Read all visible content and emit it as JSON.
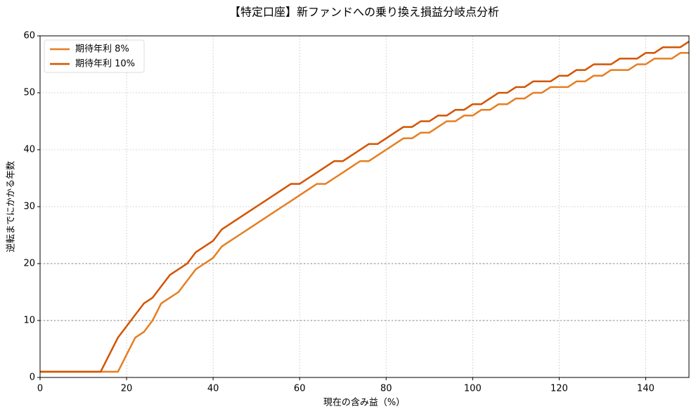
{
  "chart_data": {
    "type": "line",
    "title": "【特定口座】新ファンドへの乗り換え損益分岐点分析",
    "x_label": "現在の含み益（%）",
    "y_label": "逆転までにかかる年数",
    "x": [
      0,
      2,
      4,
      6,
      8,
      10,
      12,
      14,
      16,
      18,
      20,
      22,
      24,
      26,
      28,
      30,
      32,
      34,
      36,
      38,
      40,
      42,
      44,
      46,
      48,
      50,
      52,
      54,
      56,
      58,
      60,
      62,
      64,
      66,
      68,
      70,
      72,
      74,
      76,
      78,
      80,
      82,
      84,
      86,
      88,
      90,
      92,
      94,
      96,
      98,
      100,
      102,
      104,
      106,
      108,
      110,
      112,
      114,
      116,
      118,
      120,
      122,
      124,
      126,
      128,
      130,
      132,
      134,
      136,
      138,
      140,
      142,
      144,
      146,
      148,
      150
    ],
    "series": [
      {
        "name": "期待年利 8%",
        "color": "#e67e22",
        "values": [
          1,
          1,
          1,
          1,
          1,
          1,
          1,
          1,
          1,
          1,
          4,
          7,
          8,
          10,
          13,
          14,
          15,
          17,
          19,
          20,
          21,
          23,
          24,
          25,
          26,
          27,
          28,
          29,
          30,
          31,
          32,
          33,
          34,
          34,
          35,
          36,
          37,
          38,
          38,
          39,
          40,
          41,
          42,
          42,
          43,
          43,
          44,
          45,
          45,
          46,
          46,
          47,
          47,
          48,
          48,
          49,
          49,
          50,
          50,
          51,
          51,
          51,
          52,
          52,
          53,
          53,
          54,
          54,
          54,
          55,
          55,
          56,
          56,
          56,
          57,
          57
        ]
      },
      {
        "name": "期待年利 10%",
        "color": "#d35400",
        "values": [
          1,
          1,
          1,
          1,
          1,
          1,
          1,
          1,
          4,
          7,
          9,
          11,
          13,
          14,
          16,
          18,
          19,
          20,
          22,
          23,
          24,
          26,
          27,
          28,
          29,
          30,
          31,
          32,
          33,
          34,
          34,
          35,
          36,
          37,
          38,
          38,
          39,
          40,
          41,
          41,
          42,
          43,
          44,
          44,
          45,
          45,
          46,
          46,
          47,
          47,
          48,
          48,
          49,
          50,
          50,
          51,
          51,
          52,
          52,
          52,
          53,
          53,
          54,
          54,
          55,
          55,
          55,
          56,
          56,
          56,
          57,
          57,
          58,
          58,
          58,
          59
        ]
      }
    ],
    "xlim": [
      0,
      150
    ],
    "xticks": [
      0,
      20,
      40,
      60,
      80,
      100,
      120,
      140
    ],
    "ylim": [
      0,
      60
    ],
    "yticks": [
      0,
      10,
      20,
      30,
      40,
      50,
      60
    ],
    "reference_lines": [
      10,
      20
    ],
    "grid": true,
    "legend": "upper-left"
  }
}
